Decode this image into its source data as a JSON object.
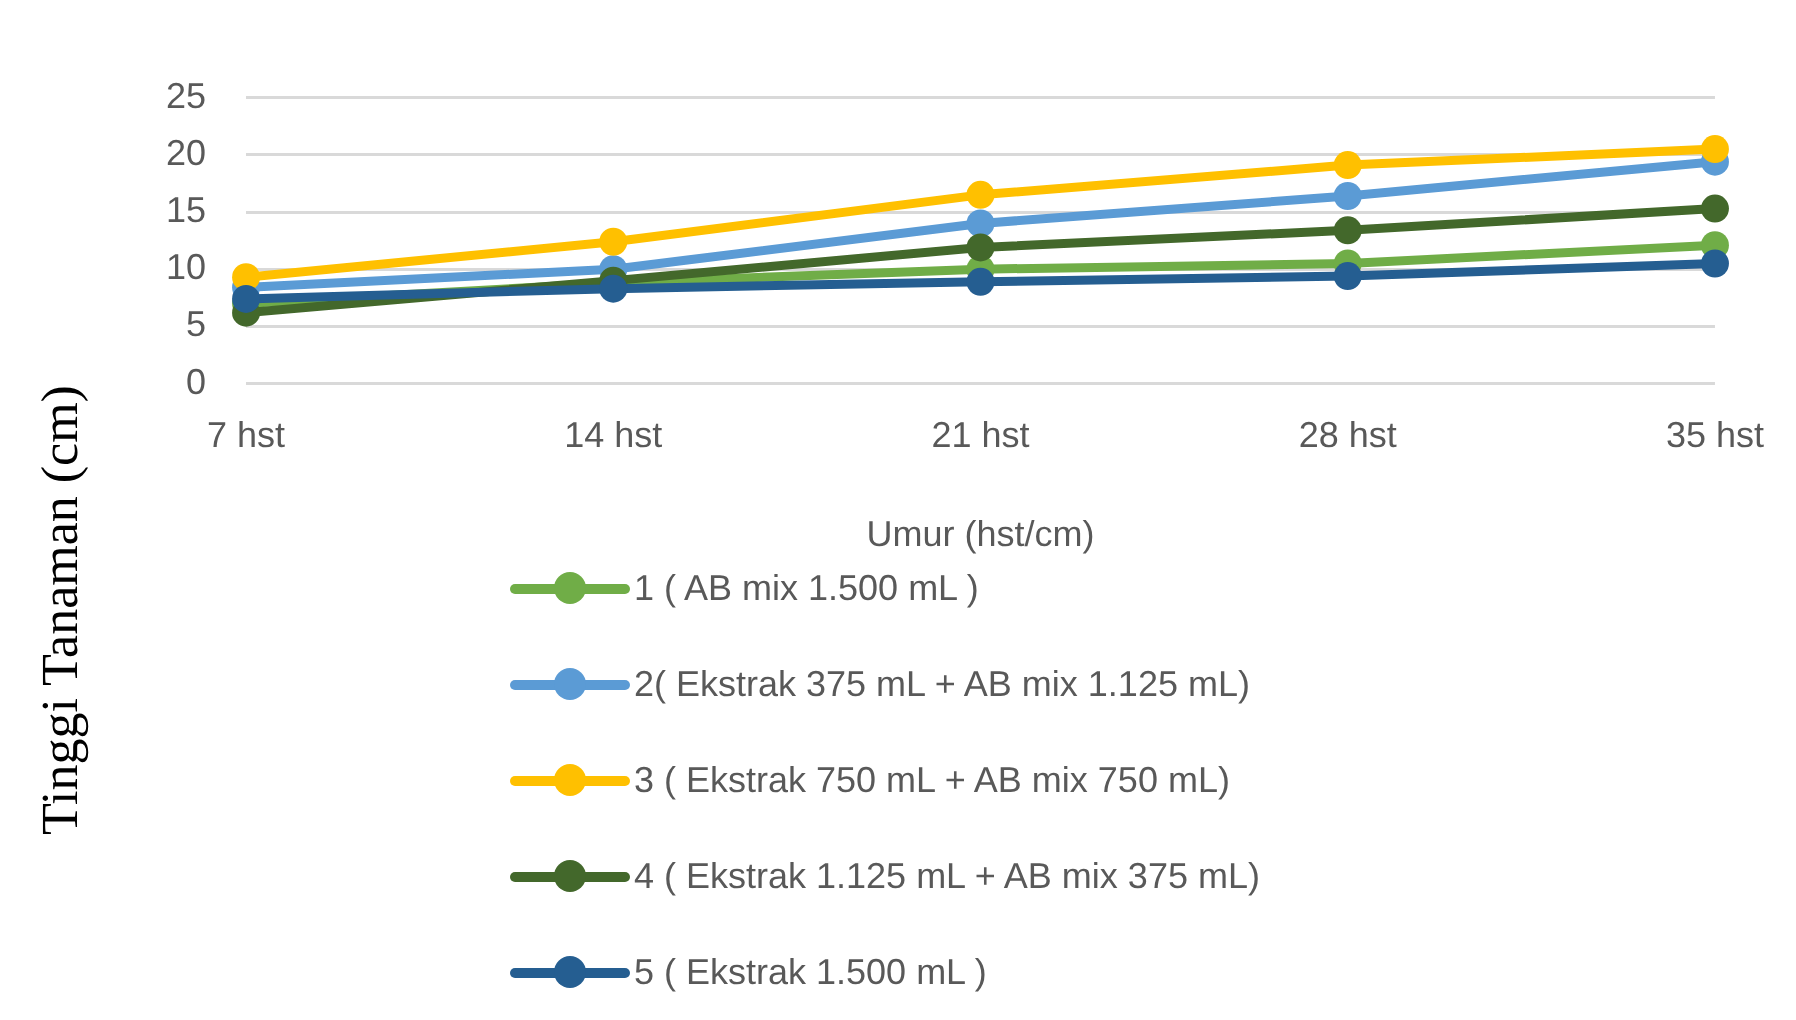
{
  "chart_data": {
    "type": "line",
    "ylabel": "Tinggi Tanaman (cm)",
    "xlabel": "Umur (hst/cm)",
    "categories": [
      "7 hst",
      "14 hst",
      "21 hst",
      "28 hst",
      "35 hst"
    ],
    "series": [
      {
        "name": "1 ( AB mix 1.500 mL )",
        "color": "#70ad47",
        "values": [
          7.0,
          8.8,
          10.0,
          10.5,
          12.1
        ]
      },
      {
        "name": "2( Ekstrak 375 mL + AB mix 1.125 mL)",
        "color": "#5b9bd5",
        "values": [
          8.4,
          10.0,
          14.0,
          16.4,
          19.4
        ]
      },
      {
        "name": "3 ( Ekstrak 750 mL + AB mix 750 mL)",
        "color": "#ffc000",
        "values": [
          9.3,
          12.4,
          16.5,
          19.1,
          20.5
        ]
      },
      {
        "name": "4 ( Ekstrak 1.125 mL + AB mix 375 mL)",
        "color": "#43682b",
        "values": [
          6.2,
          9.0,
          11.9,
          13.4,
          15.3
        ]
      },
      {
        "name": "5 ( Ekstrak 1.500 mL )",
        "color": "#255e91",
        "values": [
          7.4,
          8.3,
          8.9,
          9.4,
          10.5
        ]
      }
    ],
    "ylim": [
      0,
      25
    ],
    "yticks": [
      0,
      5,
      10,
      15,
      20,
      25
    ],
    "grid": "y",
    "legend": "bottom",
    "marker": "circle",
    "line_style": "solid"
  }
}
